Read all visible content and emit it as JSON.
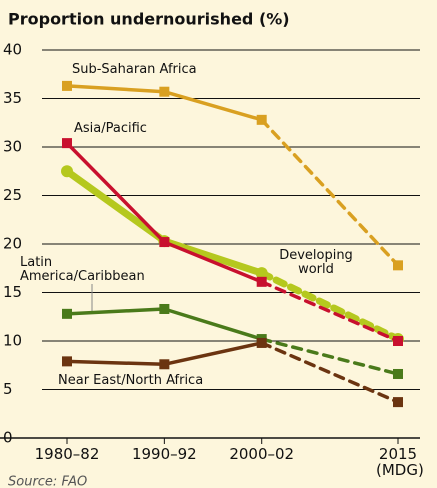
{
  "chart_data": {
    "type": "line",
    "title": "Proportion undernourished (%)",
    "source": "Source: FAO",
    "x": [
      1981,
      1991,
      2001,
      2015
    ],
    "xlim": [
      1981,
      2015
    ],
    "xticks": [
      {
        "value": 1981,
        "label": "1980–82"
      },
      {
        "value": 1991,
        "label": "1990–92"
      },
      {
        "value": 2001,
        "label": "2000–02"
      },
      {
        "value": 2015,
        "label": "2015 (MDG)"
      }
    ],
    "ylim": [
      0,
      40
    ],
    "yticks": [
      0,
      5,
      10,
      15,
      20,
      25,
      30,
      35,
      40
    ],
    "grid": true,
    "series": [
      {
        "name": "Sub-Saharan Africa",
        "color": "#d9a021",
        "marker": "square",
        "values": [
          36.3,
          35.7,
          32.8,
          17.8
        ],
        "dashed": [
          false,
          false,
          false,
          true
        ]
      },
      {
        "name": "Developing world",
        "color": "#b5c81e",
        "marker": "circle",
        "values": [
          27.5,
          20.3,
          17.0,
          10.2
        ],
        "dashed": [
          false,
          false,
          false,
          true
        ]
      },
      {
        "name": "Asia/Pacific",
        "color": "#c8102e",
        "marker": "square",
        "values": [
          30.4,
          20.2,
          16.1,
          10.0
        ],
        "dashed": [
          false,
          false,
          false,
          true
        ]
      },
      {
        "name": "Latin America/Caribbean",
        "color": "#4a7a1a",
        "marker": "square",
        "values": [
          12.8,
          13.3,
          10.2,
          6.6
        ],
        "dashed": [
          false,
          false,
          false,
          true
        ]
      },
      {
        "name": "Near East/North Africa",
        "color": "#6b3410",
        "marker": "square",
        "values": [
          7.9,
          7.6,
          9.8,
          3.7
        ],
        "dashed": [
          false,
          false,
          false,
          true
        ]
      }
    ]
  }
}
